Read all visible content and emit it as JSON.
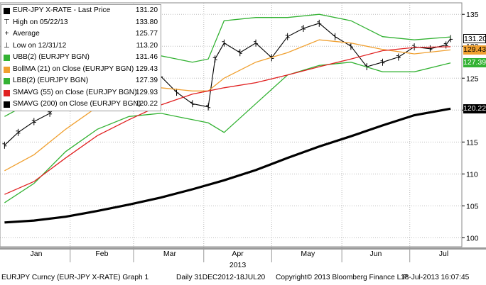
{
  "legend": [
    {
      "label": "EUR-JPY X-RATE - Last Price",
      "value": "131.20",
      "glyph": "square",
      "color": "#000000"
    },
    {
      "label": "High on 05/22/13",
      "value": "133.80",
      "glyph": "high",
      "color": "#000000"
    },
    {
      "label": "Average",
      "value": "125.77",
      "glyph": "plus",
      "color": "#000000"
    },
    {
      "label": "Low on 12/31/12",
      "value": "113.20",
      "glyph": "low",
      "color": "#000000"
    },
    {
      "label": "UBB(2) (EURJPY BGN)",
      "value": "131.46",
      "glyph": "square",
      "color": "#33b233"
    },
    {
      "label": "BollMA (21) on Close (EURJPY BGN)",
      "value": "129.43",
      "glyph": "square",
      "color": "#f0a030"
    },
    {
      "label": "LBB(2) (EURJPY BGN)",
      "value": "127.39",
      "glyph": "square",
      "color": "#33b233"
    },
    {
      "label": "SMAVG (55) on Close (EURJPY BGN)",
      "value": "129.93",
      "glyph": "square",
      "color": "#e02020"
    },
    {
      "label": "SMAVG (200) on Close (EURJPY BGN)",
      "value": "120.22",
      "glyph": "square",
      "color": "#000000"
    }
  ],
  "value_tags": [
    {
      "text": "131.20",
      "value": 131.2,
      "bg": "#ffffff",
      "fg": "#000000"
    },
    {
      "text": "129.43",
      "value": 129.43,
      "bg": "#f0a030",
      "fg": "#000000"
    },
    {
      "text": "127.39",
      "value": 127.39,
      "bg": "#33b233",
      "fg": "#ffffff"
    },
    {
      "text": "120.22",
      "value": 120.22,
      "bg": "#000000",
      "fg": "#ffffff"
    }
  ],
  "footer": {
    "security": "EURJPY Curncy (EUR-JPY X-RATE) Graph 1",
    "range": "Daily 31DEC2012-18JUL20",
    "copyright": "Copyright© 2013 Bloomberg Finance L.P.",
    "timestamp": "18-Jul-2013 16:07:45"
  },
  "colors": {
    "price": "#000000",
    "bands": "#33b233",
    "bollma": "#f0a030",
    "sma55": "#e02020",
    "sma200": "#000000"
  },
  "chart_data": {
    "type": "line",
    "title": "",
    "xlabel": "2013",
    "ylabel": "",
    "x_ticks": [
      "Jan",
      "Feb",
      "Mar",
      "Apr",
      "May",
      "Jun",
      "Jul"
    ],
    "y_ticks": [
      100,
      105,
      110,
      115,
      120,
      125,
      130,
      135
    ],
    "ylim": [
      98.6,
      136.8
    ],
    "y_axis_side": "right",
    "grid": "dotted",
    "legend_position": "top-left",
    "series": [
      {
        "name": "EUR-JPY X-RATE - Last Price",
        "style": "ohlc-bars",
        "color": "#000000",
        "x": [
          "2013-01-02",
          "2013-01-08",
          "2013-01-15",
          "2013-01-22",
          "2013-01-29",
          "2013-02-05",
          "2013-02-12",
          "2013-02-19",
          "2013-02-26",
          "2013-03-05",
          "2013-03-12",
          "2013-03-19",
          "2013-03-26",
          "2013-04-02",
          "2013-04-05",
          "2013-04-09",
          "2013-04-16",
          "2013-04-23",
          "2013-04-30",
          "2013-05-07",
          "2013-05-14",
          "2013-05-21",
          "2013-05-28",
          "2013-06-04",
          "2013-06-11",
          "2013-06-18",
          "2013-06-25",
          "2013-07-02",
          "2013-07-09",
          "2013-07-16",
          "2013-07-18"
        ],
        "values": [
          114.5,
          116.5,
          118.2,
          119.5,
          122.5,
          124.0,
          124.8,
          123.6,
          120.5,
          124.0,
          125.3,
          122.8,
          121.0,
          120.5,
          128.0,
          130.5,
          129.0,
          130.5,
          128.2,
          131.5,
          132.8,
          133.6,
          131.5,
          130.0,
          126.8,
          127.5,
          128.3,
          129.9,
          129.6,
          130.2,
          131.2
        ]
      },
      {
        "name": "UBB(2) (EURJPY BGN)",
        "color": "#33b233",
        "x": [
          "2013-01-02",
          "2013-01-15",
          "2013-01-29",
          "2013-02-12",
          "2013-02-26",
          "2013-03-12",
          "2013-03-26",
          "2013-04-02",
          "2013-04-09",
          "2013-04-23",
          "2013-05-07",
          "2013-05-21",
          "2013-06-04",
          "2013-06-18",
          "2013-07-02",
          "2013-07-18"
        ],
        "values": [
          119.0,
          121.5,
          125.5,
          127.5,
          128.5,
          128.5,
          127.5,
          128.0,
          134.0,
          134.5,
          134.5,
          135.0,
          134.0,
          131.5,
          131.0,
          131.46
        ]
      },
      {
        "name": "BollMA (21) on Close (EURJPY BGN)",
        "color": "#f0a030",
        "x": [
          "2013-01-02",
          "2013-01-15",
          "2013-01-29",
          "2013-02-12",
          "2013-02-26",
          "2013-03-12",
          "2013-03-26",
          "2013-04-02",
          "2013-04-09",
          "2013-04-23",
          "2013-05-07",
          "2013-05-21",
          "2013-06-04",
          "2013-06-18",
          "2013-07-02",
          "2013-07-18"
        ],
        "values": [
          110.5,
          113.0,
          117.0,
          120.5,
          122.5,
          123.5,
          123.0,
          123.0,
          125.0,
          127.5,
          129.0,
          131.0,
          130.5,
          129.5,
          128.8,
          129.43
        ]
      },
      {
        "name": "LBB(2) (EURJPY BGN)",
        "color": "#33b233",
        "x": [
          "2013-01-02",
          "2013-01-15",
          "2013-01-29",
          "2013-02-12",
          "2013-02-26",
          "2013-03-12",
          "2013-03-26",
          "2013-04-02",
          "2013-04-09",
          "2013-04-23",
          "2013-05-07",
          "2013-05-21",
          "2013-06-04",
          "2013-06-18",
          "2013-07-02",
          "2013-07-18"
        ],
        "values": [
          105.5,
          108.5,
          113.5,
          117.0,
          119.0,
          119.5,
          118.5,
          118.0,
          116.5,
          121.0,
          125.5,
          127.0,
          127.5,
          126.0,
          126.0,
          127.39
        ]
      },
      {
        "name": "SMAVG (55) on Close (EURJPY BGN)",
        "color": "#e02020",
        "x": [
          "2013-01-02",
          "2013-01-15",
          "2013-01-29",
          "2013-02-12",
          "2013-02-26",
          "2013-03-12",
          "2013-03-26",
          "2013-04-09",
          "2013-04-23",
          "2013-05-07",
          "2013-05-21",
          "2013-06-04",
          "2013-06-18",
          "2013-07-02",
          "2013-07-18"
        ],
        "values": [
          106.8,
          108.8,
          112.5,
          116.0,
          118.5,
          120.8,
          122.5,
          123.5,
          124.3,
          125.5,
          126.8,
          128.0,
          129.3,
          129.8,
          129.93
        ]
      },
      {
        "name": "SMAVG (200) on Close (EURJPY BGN)",
        "color": "#000000",
        "x": [
          "2013-01-02",
          "2013-01-15",
          "2013-01-29",
          "2013-02-12",
          "2013-02-26",
          "2013-03-12",
          "2013-03-26",
          "2013-04-09",
          "2013-04-23",
          "2013-05-07",
          "2013-05-21",
          "2013-06-04",
          "2013-06-18",
          "2013-07-02",
          "2013-07-18"
        ],
        "values": [
          102.4,
          102.7,
          103.3,
          104.2,
          105.2,
          106.3,
          107.6,
          109.0,
          110.6,
          112.5,
          114.3,
          115.9,
          117.6,
          119.2,
          120.22
        ]
      }
    ]
  }
}
